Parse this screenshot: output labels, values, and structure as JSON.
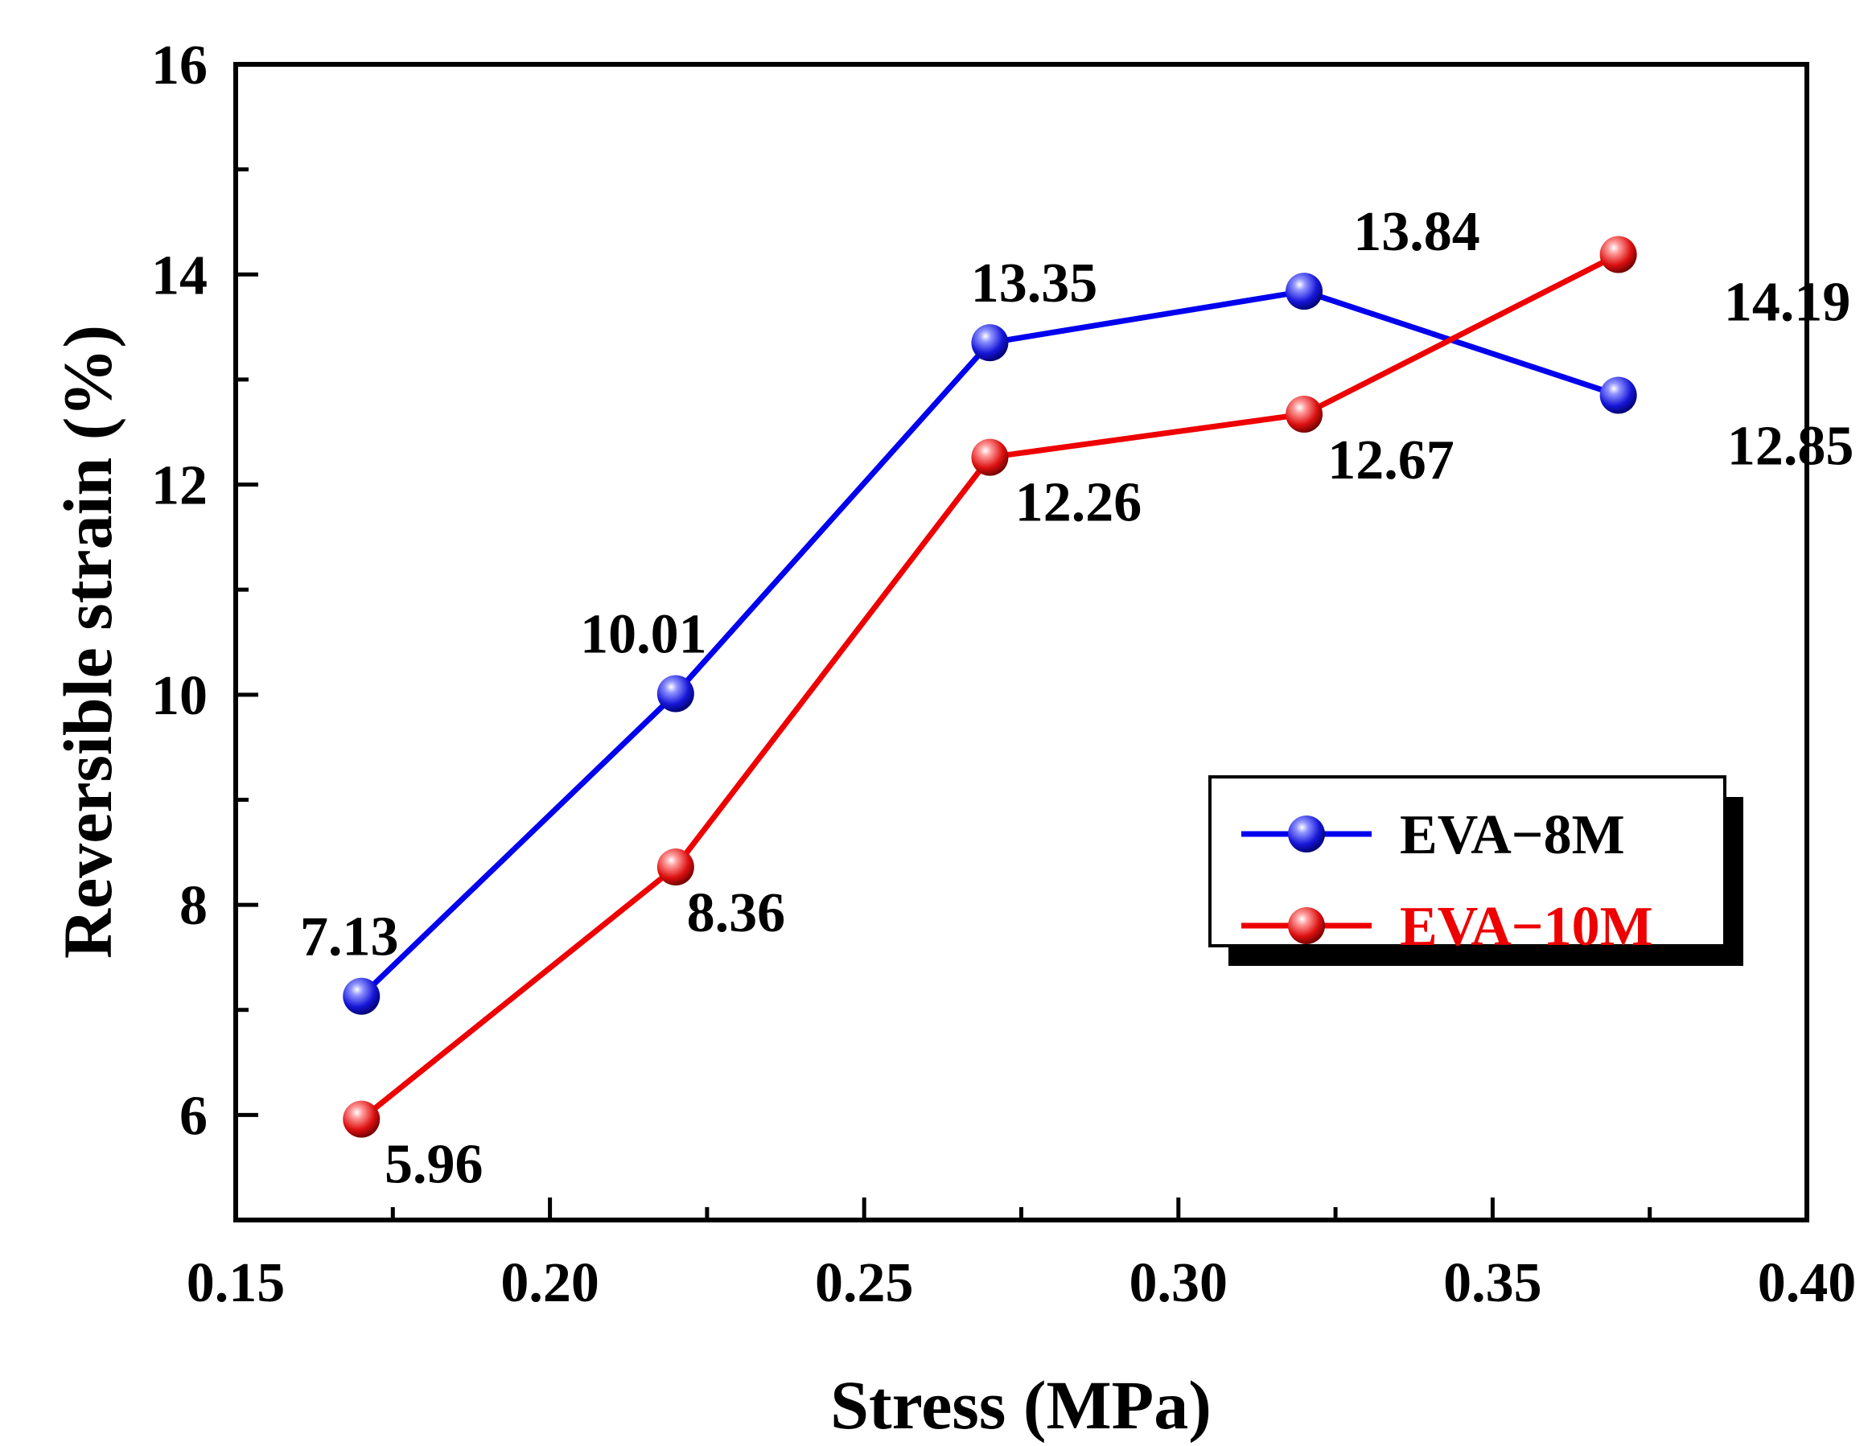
{
  "chart_data": {
    "type": "line",
    "xlabel": "Stress (MPa)",
    "ylabel": "Reversible strain (%)",
    "xlim": [
      0.15,
      0.4
    ],
    "ylim": [
      5,
      16
    ],
    "x_ticks": [
      "0.15",
      "0.20",
      "0.25",
      "0.30",
      "0.35",
      "0.40"
    ],
    "y_ticks": [
      "6",
      "8",
      "10",
      "12",
      "14",
      "16"
    ],
    "x": [
      0.17,
      0.22,
      0.27,
      0.32,
      0.37
    ],
    "series": [
      {
        "name": "EVA−8M",
        "color": "#0000ee",
        "values": [
          7.13,
          10.01,
          13.35,
          13.84,
          12.85
        ],
        "labels": [
          "7.13",
          "10.01",
          "13.35",
          "13.84",
          "12.85"
        ]
      },
      {
        "name": "EVA−10M",
        "color": "#ee0000",
        "values": [
          5.96,
          8.36,
          12.26,
          12.67,
          14.19
        ],
        "labels": [
          "5.96",
          "8.36",
          "12.26",
          "12.67",
          "14.19"
        ]
      }
    ],
    "grid": false,
    "legend_position": "right"
  }
}
